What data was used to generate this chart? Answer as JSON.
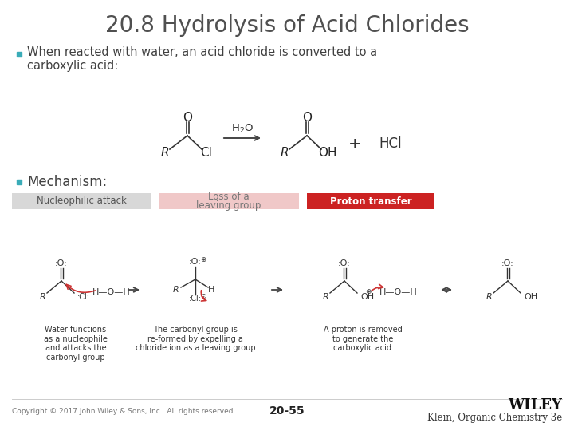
{
  "title": "20.8 Hydrolysis of Acid Chlorides",
  "bg_color": "#ffffff",
  "title_color": "#505050",
  "bullet_color": "#3aacb8",
  "text_color": "#404040",
  "bullet1_line1": "When reacted with water, an acid chloride is converted to a",
  "bullet1_line2": "carboxylic acid:",
  "bullet2": "Mechanism:",
  "footer_left": "Copyright © 2017 John Wiley & Sons, Inc.  All rights reserved.",
  "footer_center": "20-55",
  "footer_right_top": "WILEY",
  "footer_right_bottom": "Klein, Organic Chemistry 3e",
  "nucleophilic_bg": "#d8d8d8",
  "loss_bg": "#f0c8c8",
  "proton_bg": "#cc2222",
  "proton_text_color": "#ffffff",
  "arrow_color": "#cc3333",
  "mech_label_nucleophilic": "Nucleophilic attack",
  "mech_label_loss": "Loss of a\nleaving group",
  "mech_label_proton": "Proton transfer"
}
